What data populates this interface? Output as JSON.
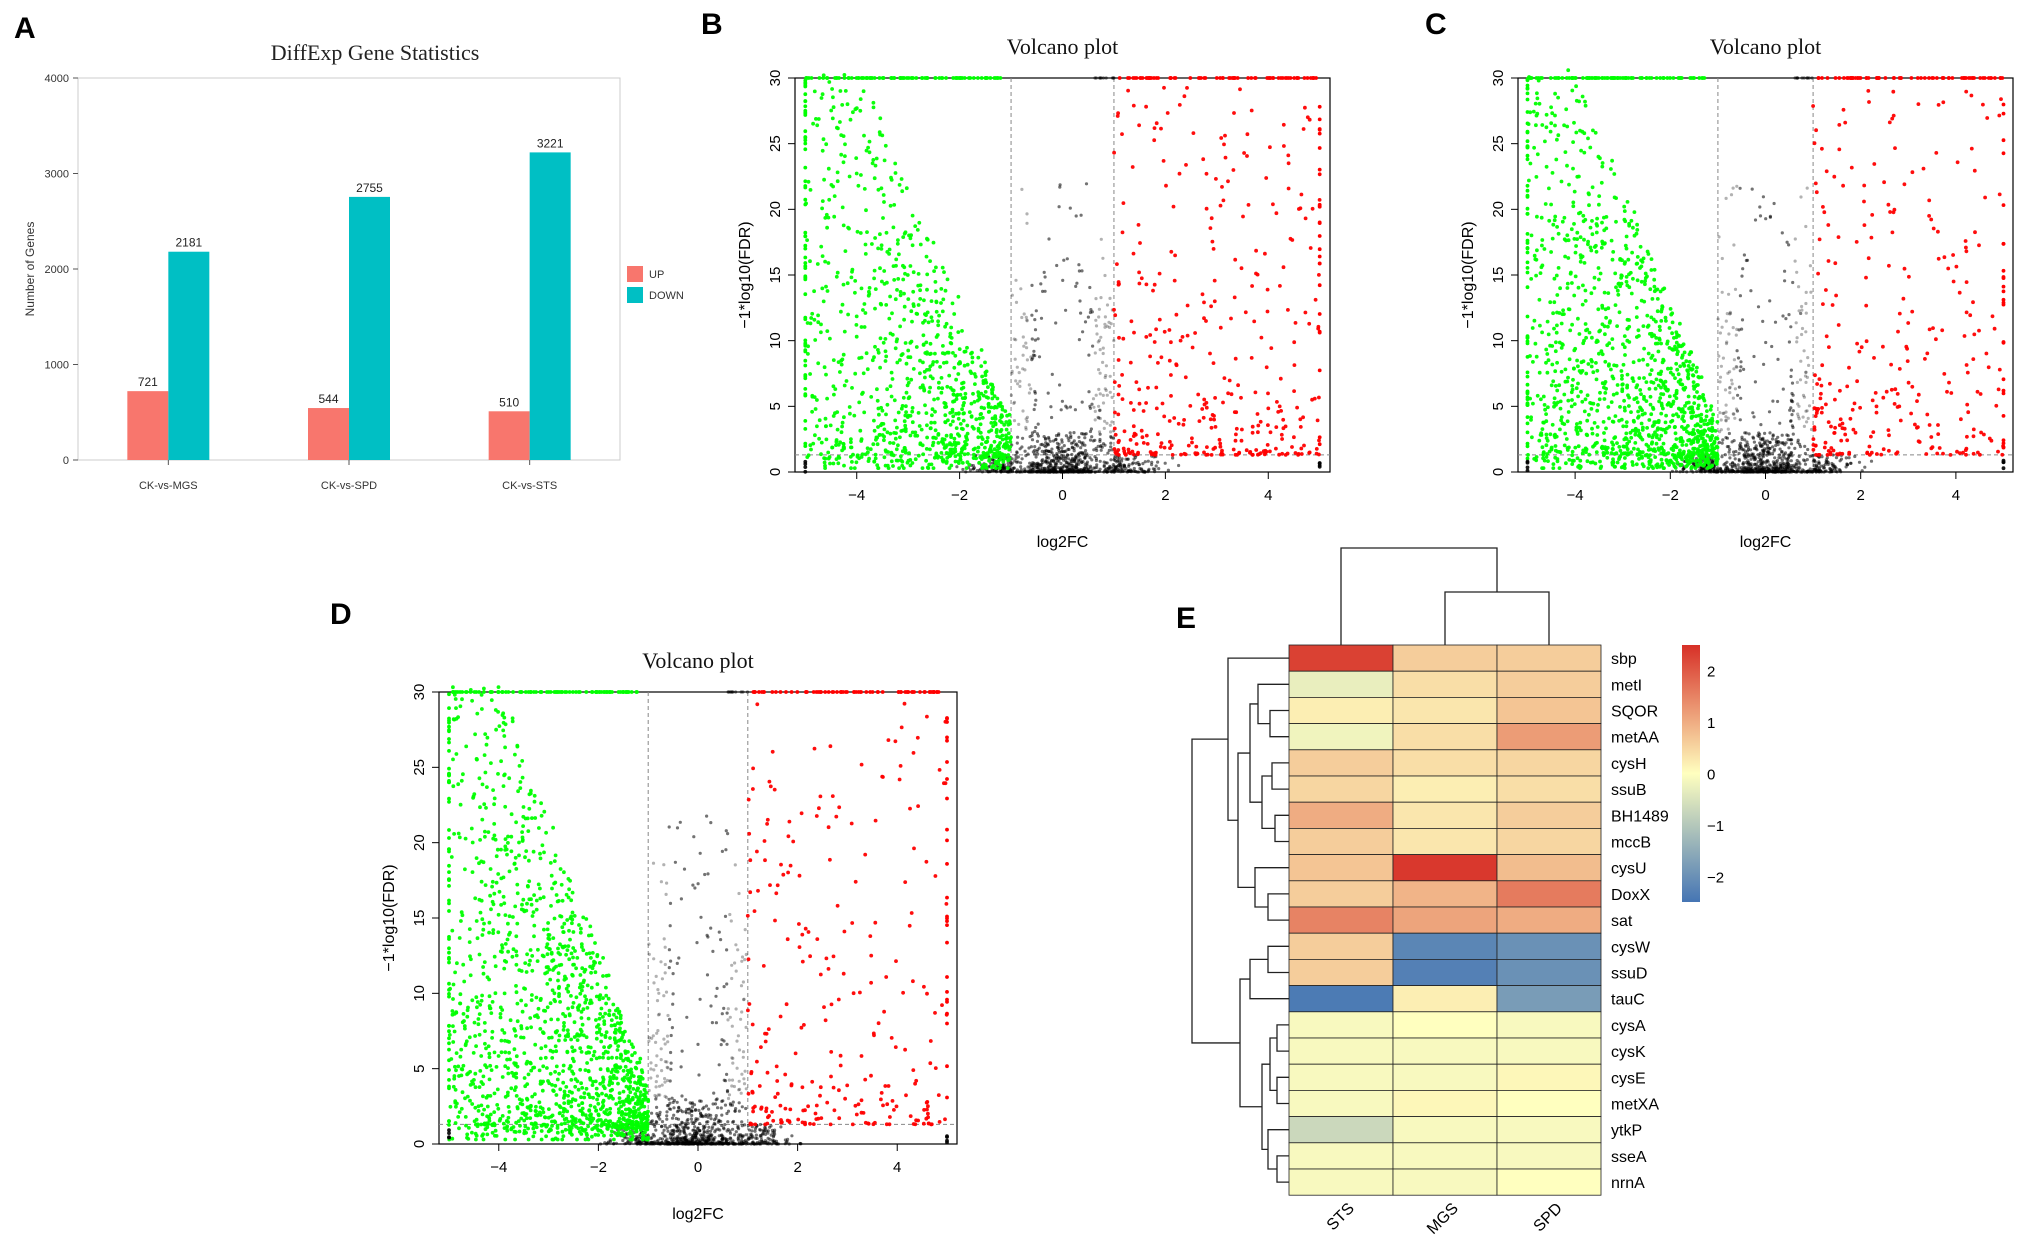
{
  "panel_labels": [
    "A",
    "B",
    "C",
    "D",
    "E"
  ],
  "colors": {
    "up_bar": "#f8766d",
    "down_bar": "#00bfc4",
    "volcano_up": "#ff0000",
    "volcano_down": "#00ff00",
    "volcano_ns": "#000000",
    "heat_low": "#4575b4",
    "heat_mid": "#ffffbf",
    "heat_high": "#d73027"
  },
  "chart_data": [
    {
      "type": "bar",
      "panel": "A",
      "title": "DiffExp Gene Statistics",
      "xlabel": "",
      "ylabel": "Number of Genes",
      "categories": [
        "CK-vs-MGS",
        "CK-vs-SPD",
        "CK-vs-STS"
      ],
      "series": [
        {
          "name": "UP",
          "values": [
            721,
            544,
            510
          ]
        },
        {
          "name": "DOWN",
          "values": [
            2181,
            2755,
            3221
          ]
        }
      ],
      "ylim": [
        0,
        4000
      ],
      "yticks": [
        0,
        1000,
        2000,
        3000,
        4000
      ],
      "legend_position": "right"
    },
    {
      "type": "scatter",
      "panel": "B",
      "title": "Volcano plot",
      "xlabel": "log2FC",
      "ylabel": "-1*log10(FDR)",
      "xlim": [
        -5.2,
        5.2
      ],
      "ylim": [
        0,
        30
      ],
      "xticks": [
        -4,
        -2,
        0,
        2,
        4
      ],
      "yticks": [
        0,
        5,
        10,
        15,
        20,
        25,
        30
      ],
      "fc_thresholds": [
        -1,
        1
      ],
      "fdr_threshold": 1.3,
      "down_count": 2181,
      "up_count": 721,
      "seed": 11
    },
    {
      "type": "scatter",
      "panel": "C",
      "title": "Volcano plot",
      "xlabel": "log2FC",
      "ylabel": "-1*log10(FDR)",
      "xlim": [
        -5.2,
        5.2
      ],
      "ylim": [
        0,
        30
      ],
      "xticks": [
        -4,
        -2,
        0,
        2,
        4
      ],
      "yticks": [
        0,
        5,
        10,
        15,
        20,
        25,
        30
      ],
      "fc_thresholds": [
        -1,
        1
      ],
      "fdr_threshold": 1.3,
      "down_count": 2755,
      "up_count": 544,
      "seed": 23
    },
    {
      "type": "scatter",
      "panel": "D",
      "title": "Volcano plot",
      "xlabel": "log2FC",
      "ylabel": "-1*log10(FDR)",
      "xlim": [
        -5.2,
        5.2
      ],
      "ylim": [
        0,
        30
      ],
      "xticks": [
        -4,
        -2,
        0,
        2,
        4
      ],
      "yticks": [
        0,
        5,
        10,
        15,
        20,
        25,
        30
      ],
      "fc_thresholds": [
        -1,
        1
      ],
      "fdr_threshold": 1.3,
      "down_count": 3221,
      "up_count": 510,
      "seed": 37
    },
    {
      "type": "heatmap",
      "panel": "E",
      "columns": [
        "STS",
        "MGS",
        "SPD"
      ],
      "rows": [
        "sbp",
        "metI",
        "SQOR",
        "metAA",
        "cysH",
        "ssuB",
        "BH1489",
        "mccB",
        "cysU",
        "DoxX",
        "sat",
        "cysW",
        "ssuD",
        "tauC",
        "cysA",
        "cysK",
        "cysE",
        "metXA",
        "ytkP",
        "sseA",
        "nrnA"
      ],
      "values": [
        [
          2.3,
          0.6,
          0.6
        ],
        [
          -0.3,
          0.4,
          0.6
        ],
        [
          0.2,
          0.3,
          0.7
        ],
        [
          -0.2,
          0.4,
          1.2
        ],
        [
          0.6,
          0.4,
          0.5
        ],
        [
          0.5,
          0.2,
          0.4
        ],
        [
          1.0,
          0.3,
          0.6
        ],
        [
          0.6,
          0.3,
          0.5
        ],
        [
          0.7,
          2.4,
          0.8
        ],
        [
          0.6,
          0.9,
          1.6
        ],
        [
          1.5,
          1.1,
          1.0
        ],
        [
          0.6,
          -2.2,
          -2.0
        ],
        [
          0.6,
          -2.3,
          -2.0
        ],
        [
          -2.4,
          0.2,
          -1.8
        ],
        [
          -0.1,
          0.0,
          -0.1
        ],
        [
          -0.1,
          -0.1,
          -0.1
        ],
        [
          -0.1,
          -0.1,
          0.1
        ],
        [
          -0.1,
          0.1,
          0.0
        ],
        [
          -0.7,
          -0.1,
          -0.1
        ],
        [
          -0.1,
          -0.1,
          -0.1
        ],
        [
          -0.1,
          -0.1,
          0.0
        ]
      ],
      "color_scale_ticks": [
        2,
        1,
        0,
        -1,
        -2
      ],
      "color_range": [
        -2.5,
        2.5
      ]
    }
  ]
}
